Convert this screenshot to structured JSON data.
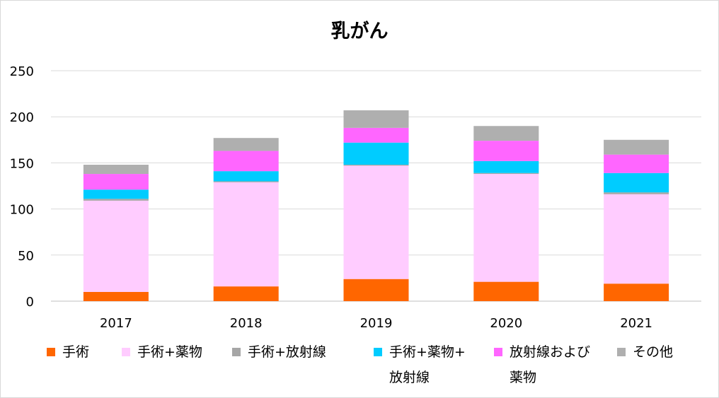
{
  "chart_data": {
    "type": "bar",
    "stacked": true,
    "title": "乳がん",
    "categories": [
      "2017",
      "2018",
      "2019",
      "2020",
      "2021"
    ],
    "ylim": [
      0,
      250
    ],
    "yticks": [
      "0",
      "50",
      "100",
      "150",
      "200",
      "250"
    ],
    "grid": true,
    "legend_position": "bottom",
    "series": [
      {
        "name": "手術",
        "color": "#ff6600",
        "values": [
          10,
          16,
          24,
          21,
          19
        ]
      },
      {
        "name": "手術+薬物",
        "color": "#ffccff",
        "values": [
          99,
          113,
          123,
          117,
          97
        ]
      },
      {
        "name": "手術+放射線",
        "color": "#a6a6a6",
        "values": [
          2,
          1,
          1,
          1,
          2
        ]
      },
      {
        "name": "手術+薬物+\n放射線",
        "color": "#00ccff",
        "values": [
          10,
          11,
          24,
          13,
          21
        ]
      },
      {
        "name": "放射線および\n薬物",
        "color": "#ff66ff",
        "values": [
          17,
          22,
          16,
          22,
          20
        ]
      },
      {
        "name": "その他",
        "color": "#afafaf",
        "values": [
          10,
          14,
          19,
          16,
          16
        ]
      }
    ]
  }
}
